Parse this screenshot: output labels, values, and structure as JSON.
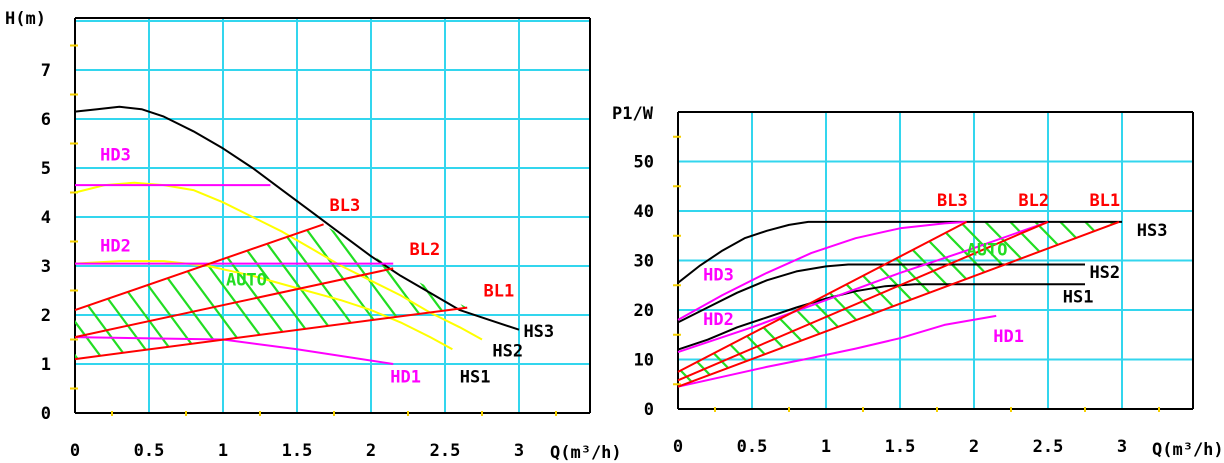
{
  "chart_data": [
    {
      "type": "line",
      "title": "",
      "ylabel": "H(m)",
      "xlabel": "Q(m³/h)",
      "xlim": [
        0,
        3.3
      ],
      "ylim": [
        0,
        8
      ],
      "xticks": [
        "0",
        "0.5",
        "1",
        "1.5",
        "2",
        "2.5",
        "3"
      ],
      "yticks": [
        "0",
        "1",
        "2",
        "3",
        "4",
        "5",
        "6",
        "7"
      ],
      "grid": true,
      "auto_label": "AUTO",
      "series": [
        {
          "name": "HS3",
          "color": "#000000",
          "x": [
            0,
            0.15,
            0.3,
            0.45,
            0.6,
            0.8,
            1.0,
            1.2,
            1.4,
            1.6,
            1.8,
            2.0,
            2.2,
            2.4,
            2.6,
            2.8,
            3.0
          ],
          "y": [
            6.15,
            6.2,
            6.25,
            6.2,
            6.05,
            5.75,
            5.4,
            5.0,
            4.55,
            4.1,
            3.65,
            3.2,
            2.8,
            2.45,
            2.1,
            1.9,
            1.7
          ]
        },
        {
          "name": "HS2",
          "color": "#ffff00",
          "x": [
            0,
            0.2,
            0.4,
            0.6,
            0.8,
            1.0,
            1.2,
            1.4,
            1.6,
            1.8,
            2.0,
            2.2,
            2.4,
            2.6,
            2.75
          ],
          "y": [
            4.5,
            4.65,
            4.7,
            4.65,
            4.55,
            4.3,
            4.0,
            3.7,
            3.35,
            3.0,
            2.7,
            2.4,
            2.05,
            1.75,
            1.5
          ]
        },
        {
          "name": "HS1",
          "color": "#ffff00",
          "x": [
            0,
            0.3,
            0.6,
            0.9,
            1.2,
            1.5,
            1.8,
            2.0,
            2.2,
            2.4,
            2.55
          ],
          "y": [
            3.05,
            3.1,
            3.1,
            3.0,
            2.8,
            2.55,
            2.3,
            2.1,
            1.85,
            1.55,
            1.3
          ]
        },
        {
          "name": "HD3",
          "color": "#ff00ff",
          "x": [
            0,
            1.32
          ],
          "y": [
            4.65,
            4.65
          ]
        },
        {
          "name": "HD2",
          "color": "#ff00ff",
          "x": [
            0,
            2.15
          ],
          "y": [
            3.05,
            3.05
          ]
        },
        {
          "name": "HD1",
          "color": "#ff00ff",
          "x": [
            0,
            1.0,
            1.5,
            2.15
          ],
          "y": [
            1.55,
            1.5,
            1.3,
            1.0
          ]
        },
        {
          "name": "BL3",
          "color": "#ff0000",
          "x": [
            0,
            1.68
          ],
          "y": [
            2.1,
            3.85
          ]
        },
        {
          "name": "BL2",
          "color": "#ff0000",
          "x": [
            0,
            2.15
          ],
          "y": [
            1.55,
            2.95
          ]
        },
        {
          "name": "BL1",
          "color": "#ff0000",
          "x": [
            0,
            2.65
          ],
          "y": [
            1.1,
            2.15
          ]
        }
      ],
      "labels": [
        {
          "text": "HD3",
          "color": "#ff00ff",
          "x": 0.17,
          "y": 5.15
        },
        {
          "text": "HD2",
          "color": "#ff00ff",
          "x": 0.17,
          "y": 3.3
        },
        {
          "text": "HD1",
          "color": "#ff00ff",
          "x": 2.13,
          "y": 0.62
        },
        {
          "text": "BL3",
          "color": "#ff0000",
          "x": 1.72,
          "y": 4.12
        },
        {
          "text": "BL2",
          "color": "#ff0000",
          "x": 2.26,
          "y": 3.22
        },
        {
          "text": "BL1",
          "color": "#ff0000",
          "x": 2.76,
          "y": 2.38
        },
        {
          "text": "HS3",
          "color": "#000000",
          "x": 3.03,
          "y": 1.55
        },
        {
          "text": "HS2",
          "color": "#000000",
          "x": 2.82,
          "y": 1.15
        },
        {
          "text": "HS1",
          "color": "#000000",
          "x": 2.6,
          "y": 0.62
        }
      ]
    },
    {
      "type": "line",
      "title": "",
      "ylabel": "P1/W",
      "xlabel": "Q(m³/h)",
      "xlim": [
        0,
        3.5
      ],
      "ylim": [
        0,
        60
      ],
      "xticks": [
        "0",
        "0.5",
        "1",
        "1.5",
        "2",
        "2.5",
        "3"
      ],
      "yticks": [
        "0",
        "10",
        "20",
        "30",
        "40",
        "50"
      ],
      "grid": true,
      "auto_label": "AUTO",
      "series": [
        {
          "name": "HS3",
          "color": "#000000",
          "x": [
            0,
            0.15,
            0.3,
            0.45,
            0.6,
            0.75,
            0.88,
            2.5,
            3.0
          ],
          "y": [
            25.5,
            29,
            32,
            34.5,
            36,
            37.2,
            37.8,
            37.8,
            37.8
          ]
        },
        {
          "name": "HS2",
          "color": "#000000",
          "x": [
            0,
            0.2,
            0.4,
            0.6,
            0.8,
            1.0,
            1.15,
            2.75
          ],
          "y": [
            17.5,
            20.5,
            23.5,
            26,
            27.8,
            28.8,
            29.2,
            29.2
          ]
        },
        {
          "name": "HS1",
          "color": "#000000",
          "x": [
            0,
            0.2,
            0.4,
            0.6,
            0.8,
            1.0,
            1.2,
            1.4,
            1.6,
            2.75
          ],
          "y": [
            12,
            14,
            16.5,
            18.5,
            20.5,
            22.3,
            23.8,
            24.8,
            25.2,
            25.2
          ]
        },
        {
          "name": "HD3",
          "color": "#ff00ff",
          "x": [
            0,
            0.3,
            0.6,
            0.9,
            1.2,
            1.5,
            1.8,
            1.95
          ],
          "y": [
            18,
            23,
            27.5,
            31.5,
            34.5,
            36.5,
            37.5,
            37.8
          ]
        },
        {
          "name": "HD2",
          "color": "#ff00ff",
          "x": [
            0,
            0.5,
            1.0,
            1.5,
            2.0,
            2.5
          ],
          "y": [
            11.5,
            16.5,
            22,
            27.5,
            32.5,
            37.8
          ]
        },
        {
          "name": "HD1",
          "color": "#ff00ff",
          "x": [
            0,
            0.3,
            0.6,
            0.9,
            1.2,
            1.5,
            1.8,
            2.15
          ],
          "y": [
            4.5,
            6.5,
            8.5,
            10.3,
            12.2,
            14.3,
            17,
            18.8
          ]
        },
        {
          "name": "BL3",
          "color": "#ff0000",
          "x": [
            0,
            1.95
          ],
          "y": [
            7.5,
            37.8
          ]
        },
        {
          "name": "BL2",
          "color": "#ff0000",
          "x": [
            0,
            2.5
          ],
          "y": [
            5.8,
            37.8
          ]
        },
        {
          "name": "BL1",
          "color": "#ff0000",
          "x": [
            0,
            2.98
          ],
          "y": [
            4.5,
            37.8
          ]
        }
      ],
      "labels": [
        {
          "text": "HD3",
          "color": "#ff00ff",
          "x": 0.17,
          "y": 26
        },
        {
          "text": "HD2",
          "color": "#ff00ff",
          "x": 0.17,
          "y": 17
        },
        {
          "text": "HD1",
          "color": "#ff00ff",
          "x": 2.13,
          "y": 13.5
        },
        {
          "text": "BL3",
          "color": "#ff0000",
          "x": 1.75,
          "y": 41
        },
        {
          "text": "BL2",
          "color": "#ff0000",
          "x": 2.3,
          "y": 41
        },
        {
          "text": "BL1",
          "color": "#ff0000",
          "x": 2.78,
          "y": 41
        },
        {
          "text": "HS3",
          "color": "#000000",
          "x": 3.1,
          "y": 35
        },
        {
          "text": "HS2",
          "color": "#000000",
          "x": 2.78,
          "y": 26.5
        },
        {
          "text": "HS1",
          "color": "#000000",
          "x": 2.6,
          "y": 21.5
        }
      ]
    }
  ]
}
